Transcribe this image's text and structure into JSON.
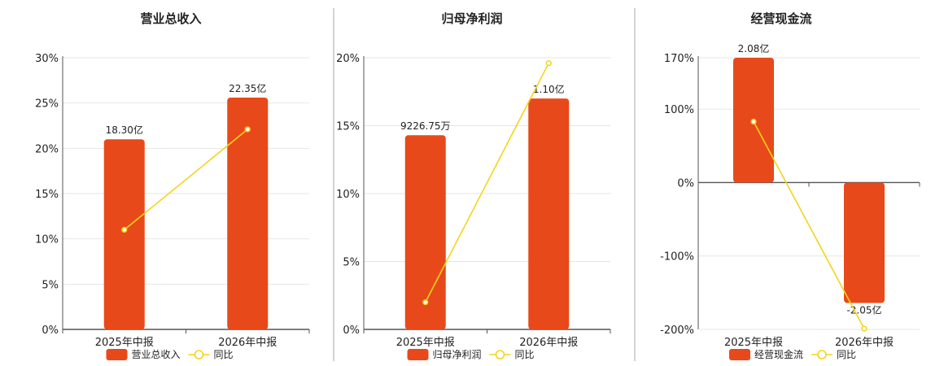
{
  "colors": {
    "bar": "#e8491a",
    "line": "#f2d51b",
    "grid": "#e6e6e6",
    "axis": "#555555",
    "divider": "#aaaaaa",
    "text": "#222222"
  },
  "chart_data": [
    {
      "type": "bar",
      "title": "营业总收入",
      "categories": [
        "2025年中报",
        "2026年中报"
      ],
      "series": [
        {
          "name": "营业总收入",
          "type": "bar",
          "values": [
            21.0,
            25.6
          ],
          "labels": [
            "18.30亿",
            "22.35亿"
          ]
        },
        {
          "name": "同比",
          "type": "line",
          "values": [
            11.0,
            22.1
          ]
        }
      ],
      "ylim": [
        0,
        30
      ],
      "yticks": [
        "0%",
        "5%",
        "10%",
        "15%",
        "20%",
        "25%",
        "30%"
      ],
      "grid": true,
      "legend": "bottom"
    },
    {
      "type": "bar",
      "title": "归母净利润",
      "categories": [
        "2025年中报",
        "2026年中报"
      ],
      "series": [
        {
          "name": "归母净利润",
          "type": "bar",
          "values": [
            14.3,
            17.0
          ],
          "labels": [
            "9226.75万",
            "1.10亿"
          ]
        },
        {
          "name": "同比",
          "type": "line",
          "values": [
            2.0,
            19.6
          ]
        }
      ],
      "ylim": [
        0,
        20
      ],
      "yticks": [
        "0%",
        "5%",
        "10%",
        "15%",
        "20%"
      ],
      "grid": true,
      "legend": "bottom"
    },
    {
      "type": "bar",
      "title": "经营现金流",
      "categories": [
        "2025年中报",
        "2026年中报"
      ],
      "series": [
        {
          "name": "经营现金流",
          "type": "bar",
          "values": [
            170,
            -164
          ],
          "labels": [
            "2.08亿",
            "-2.05亿"
          ]
        },
        {
          "name": "同比",
          "type": "line",
          "values": [
            83,
            -199
          ]
        }
      ],
      "ylim": [
        -200,
        170
      ],
      "yticks": [
        "-200%",
        "-100%",
        "0%",
        "100%",
        "170%"
      ],
      "ytick_values": [
        -200,
        -100,
        0,
        100,
        170
      ],
      "grid": true,
      "legend": "bottom"
    }
  ]
}
